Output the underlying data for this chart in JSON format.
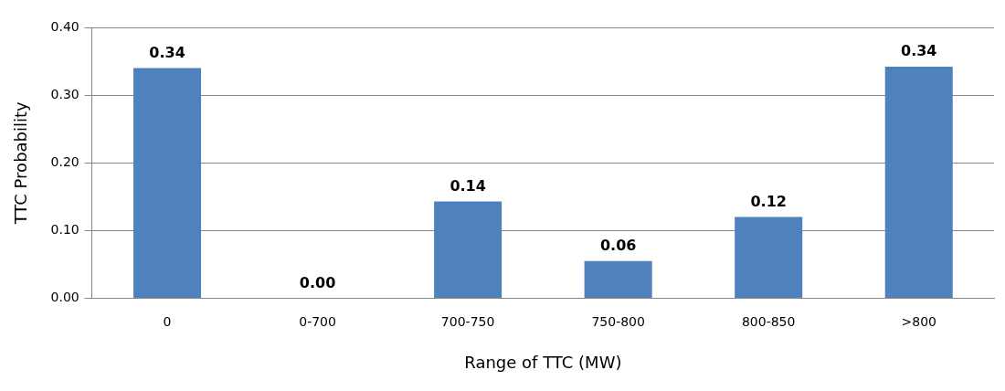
{
  "chart_data": {
    "type": "bar",
    "xlabel": "Range of TTC (MW)",
    "ylabel": "TTC Probability",
    "categories": [
      "0",
      "0-700",
      "700-750",
      "750-800",
      "800-850",
      ">800"
    ],
    "values": [
      0.34,
      0,
      0.143,
      0.055,
      0.12,
      0.342
    ],
    "value_labels": [
      "0.34",
      "0.00",
      "0.14",
      "0.06",
      "0.12",
      "0.34"
    ],
    "color": "#4f81bd",
    "ylim": [
      0,
      0.4
    ],
    "yticks": [
      {
        "value": 0,
        "label": "0.00"
      },
      {
        "value": 0.1,
        "label": "0.10"
      },
      {
        "value": 0.2,
        "label": "0.20"
      },
      {
        "value": 0.3,
        "label": "0.30"
      },
      {
        "value": 0.4,
        "label": "0.40"
      }
    ],
    "grid": "y",
    "legend": false
  }
}
